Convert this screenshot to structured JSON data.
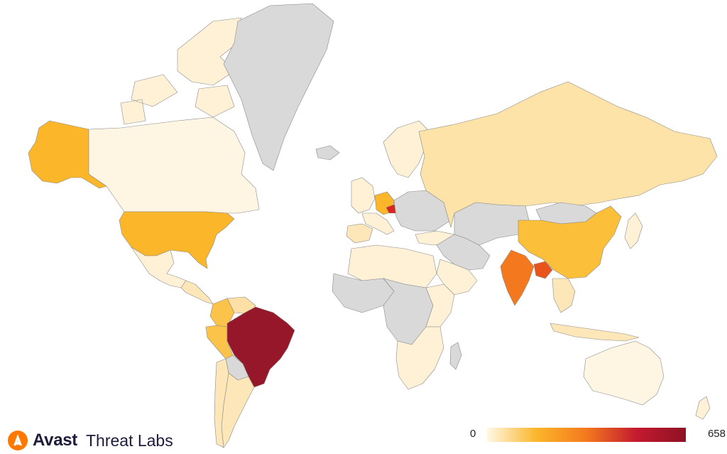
{
  "brand": {
    "name": "Avast",
    "product": "Threat Labs",
    "accent_color": "#ff7800"
  },
  "legend": {
    "min_label": "0",
    "max_label": "658",
    "gradient_stops": [
      "#fff8e6",
      "#fbb62a",
      "#f4791e",
      "#c41a2f",
      "#8f1124"
    ]
  },
  "colors": {
    "no_data": "#d9d9d9",
    "ocean": "#ffffff",
    "border": "#8a8a8a"
  },
  "map": {
    "countries": [
      {
        "name": "Greenland",
        "color": "#d9d9d9"
      },
      {
        "name": "Canada",
        "color": "#fff5e3"
      },
      {
        "name": "Alaska",
        "color": "#fbb62a"
      },
      {
        "name": "United States",
        "color": "#fbb62a"
      },
      {
        "name": "Mexico",
        "color": "#fff1d6"
      },
      {
        "name": "Central America",
        "color": "#fde7b8"
      },
      {
        "name": "Colombia",
        "color": "#fbc349"
      },
      {
        "name": "Venezuela",
        "color": "#fde0a6"
      },
      {
        "name": "Peru",
        "color": "#fbc349"
      },
      {
        "name": "Brazil",
        "color": "#96162a"
      },
      {
        "name": "Bolivia",
        "color": "#d9d9d9"
      },
      {
        "name": "Argentina",
        "color": "#fde7b8"
      },
      {
        "name": "Chile",
        "color": "#fde7b8"
      },
      {
        "name": "Russia",
        "color": "#fde3a7"
      },
      {
        "name": "Scandinavia",
        "color": "#fff1d6"
      },
      {
        "name": "Western Europe",
        "color": "#fff1d6"
      },
      {
        "name": "Germany",
        "color": "#fbb62a"
      },
      {
        "name": "Czechia",
        "color": "#d9251d"
      },
      {
        "name": "Spain",
        "color": "#fde7b8"
      },
      {
        "name": "Turkey",
        "color": "#fff1d6"
      },
      {
        "name": "Middle East",
        "color": "#d9d9d9"
      },
      {
        "name": "Saudi Arabia",
        "color": "#fff1d6"
      },
      {
        "name": "Central Asia",
        "color": "#d9d9d9"
      },
      {
        "name": "Mongolia",
        "color": "#d9d9d9"
      },
      {
        "name": "China",
        "color": "#fbbf3a"
      },
      {
        "name": "India",
        "color": "#f4791e"
      },
      {
        "name": "Bangladesh",
        "color": "#e8541c"
      },
      {
        "name": "Southeast Asia",
        "color": "#fde7b8"
      },
      {
        "name": "Indonesia",
        "color": "#fde7b8"
      },
      {
        "name": "Japan",
        "color": "#fff1d6"
      },
      {
        "name": "North Africa",
        "color": "#fff1d6"
      },
      {
        "name": "West Africa",
        "color": "#d9d9d9"
      },
      {
        "name": "Central Africa",
        "color": "#d9d9d9"
      },
      {
        "name": "East Africa",
        "color": "#fff1d6"
      },
      {
        "name": "Southern Africa",
        "color": "#fff1d6"
      },
      {
        "name": "Madagascar",
        "color": "#d9d9d9"
      },
      {
        "name": "Australia",
        "color": "#fff5e3"
      },
      {
        "name": "New Zealand",
        "color": "#fff1d6"
      },
      {
        "name": "Canadian Arctic Islands",
        "color": "#fff1d6"
      },
      {
        "name": "Iceland",
        "color": "#d9d9d9"
      }
    ]
  }
}
